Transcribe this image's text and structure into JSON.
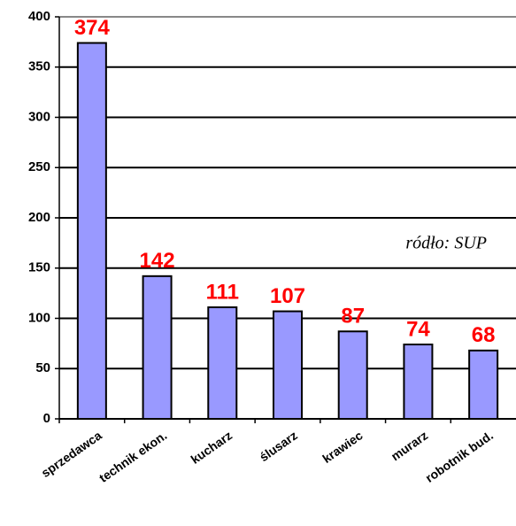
{
  "chart_data": {
    "type": "bar",
    "categories": [
      "sprzedawca",
      "technik ekon.",
      "kucharz",
      "ślusarz",
      "krawiec",
      "murarz",
      "robotnik bud."
    ],
    "values": [
      374,
      142,
      111,
      107,
      87,
      74,
      68
    ],
    "color": "#9999ff",
    "ylim": [
      0,
      400
    ],
    "yticks": [
      0,
      50,
      100,
      150,
      200,
      250,
      300,
      350,
      400
    ],
    "grid": true,
    "annotation": "ródło: SUP"
  }
}
